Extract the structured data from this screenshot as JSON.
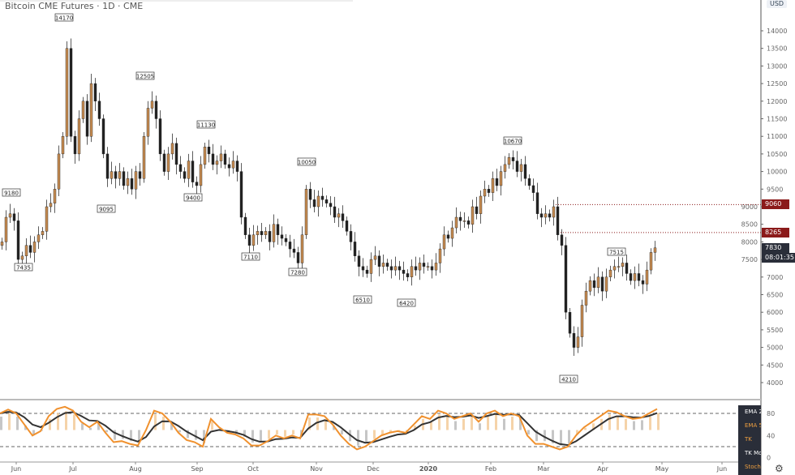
{
  "header": {
    "title": "Bitcoin CME Futures · 1D · CME",
    "currency": "USD"
  },
  "colors": {
    "up": "#c68b51",
    "down": "#222222",
    "alert": "#8b1a1a",
    "current": "#2a2e39",
    "osc_fast": "#f0912e",
    "osc_slow": "#333333"
  },
  "price_labels": {
    "level1": "9060",
    "level2": "8265",
    "last": "7830",
    "countdown": "08:01:35"
  },
  "legend": {
    "items": [
      {
        "label": "EMA 20",
        "color": "#ffffff"
      },
      {
        "label": "EMA 50",
        "color": "#f0a040"
      },
      {
        "label": "TK",
        "color": "#f0a040"
      },
      {
        "label": "TK Mom",
        "color": "#ffffff"
      },
      {
        "label": "Stoch",
        "color": "#f0a040"
      }
    ]
  },
  "chart_data": {
    "type": "candlestick",
    "yticks": [
      "4000",
      "4500",
      "5000",
      "5500",
      "6000",
      "6500",
      "7000",
      "7500",
      "8000",
      "8500",
      "9000",
      "9500",
      "10000",
      "10500",
      "11000",
      "11500",
      "12000",
      "12500",
      "13000",
      "13500",
      "14000"
    ],
    "ylim": [
      4000,
      14000
    ],
    "xticks": [
      "Jun",
      "Jul",
      "Aug",
      "Sep",
      "Oct",
      "Nov",
      "Dec",
      "2020",
      "Feb",
      "Mar",
      "Apr",
      "May",
      "Jun"
    ],
    "closes": [
      8000,
      8700,
      8800,
      8600,
      7500,
      7600,
      7900,
      7700,
      8000,
      8200,
      8300,
      9000,
      9100,
      9500,
      10500,
      11000,
      13500,
      11000,
      10500,
      11500,
      12000,
      11000,
      12500,
      12000,
      11500,
      10500,
      9800,
      10000,
      9800,
      10000,
      9600,
      9800,
      9500,
      10000,
      9800,
      11000,
      11800,
      12000,
      11500,
      10500,
      10000,
      10500,
      10800,
      10200,
      10000,
      9800,
      10300,
      9700,
      9600,
      10200,
      10700,
      10500,
      10200,
      10300,
      10500,
      10200,
      10100,
      10300,
      10000,
      8700,
      8200,
      7900,
      8200,
      8300,
      8200,
      8300,
      8000,
      8500,
      8200,
      8100,
      8000,
      7800,
      7700,
      7400,
      8200,
      9500,
      9200,
      9000,
      9300,
      9200,
      9100,
      9000,
      8700,
      8800,
      8600,
      8300,
      8000,
      7600,
      7300,
      7200,
      7100,
      7500,
      7600,
      7300,
      7400,
      7300,
      7200,
      7300,
      7200,
      7100,
      7000,
      7300,
      7200,
      7400,
      7300,
      7300,
      7200,
      7400,
      7800,
      8200,
      8100,
      8400,
      8700,
      8600,
      8600,
      8500,
      9000,
      8800,
      9300,
      9500,
      9400,
      9800,
      9600,
      10000,
      10200,
      10400,
      10300,
      10000,
      10200,
      9800,
      9600,
      9400,
      8800,
      8700,
      8800,
      8700,
      9000,
      8200,
      7900,
      6000,
      5400,
      5000,
      5300,
      6200,
      6600,
      6900,
      6700,
      7000,
      6600,
      7000,
      7200,
      7300,
      7300,
      7400,
      7100,
      6900,
      7100,
      6900,
      6800,
      7200,
      7700,
      7830
    ],
    "annotations": [
      "14170",
      "9180",
      "7435",
      "12505",
      "9095",
      "11130",
      "9400",
      "7110",
      "10050",
      "7280",
      "6510",
      "6420",
      "10670",
      "7515",
      "4210"
    ],
    "oscillator": {
      "yticks": [
        "0",
        "40",
        "80"
      ],
      "levels": [
        20,
        80
      ],
      "fast": [
        80,
        87,
        80,
        60,
        40,
        48,
        75,
        88,
        92,
        85,
        65,
        55,
        65,
        45,
        28,
        30,
        25,
        22,
        50,
        85,
        80,
        65,
        45,
        32,
        28,
        20,
        70,
        55,
        45,
        42,
        35,
        22,
        22,
        30,
        40,
        35,
        40,
        35,
        78,
        78,
        75,
        60,
        40,
        25,
        15,
        20,
        30,
        40,
        45,
        48,
        45,
        60,
        75,
        70,
        85,
        80,
        70,
        75,
        80,
        65,
        80,
        85,
        75,
        80,
        75,
        40,
        25,
        25,
        20,
        15,
        20,
        40,
        55,
        65,
        75,
        85,
        82,
        75,
        70,
        72,
        80,
        88
      ]
    }
  }
}
